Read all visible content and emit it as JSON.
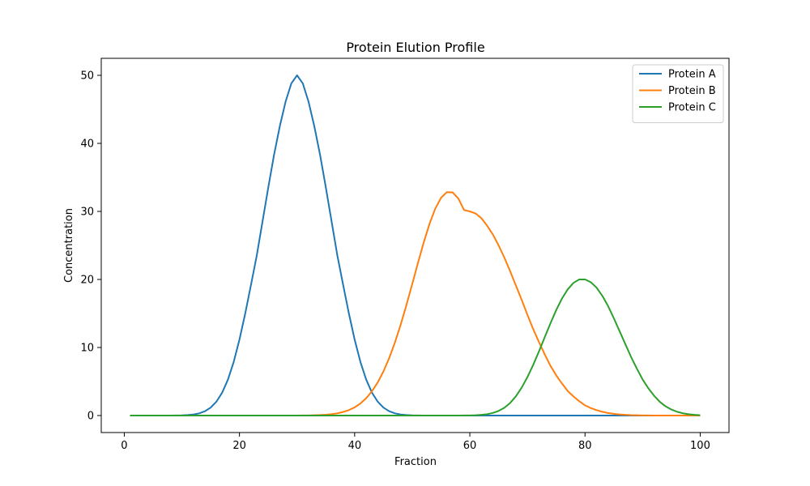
{
  "chart_data": {
    "type": "line",
    "title": "Protein Elution Profile",
    "xlabel": "Fraction",
    "ylabel": "Concentration",
    "xlim": [
      -4,
      105
    ],
    "ylim": [
      -2.5,
      52.5
    ],
    "xticks": [
      0,
      20,
      40,
      60,
      80,
      100
    ],
    "yticks": [
      0,
      10,
      20,
      30,
      40,
      50
    ],
    "x_range": [
      1,
      100
    ],
    "legend": "top-right",
    "grid": false,
    "series": [
      {
        "name": "Protein A",
        "color": "#1f77b4",
        "x": [
          1,
          2,
          3,
          4,
          5,
          6,
          7,
          8,
          9,
          10,
          11,
          12,
          13,
          14,
          15,
          16,
          17,
          18,
          19,
          20,
          21,
          22,
          23,
          24,
          25,
          26,
          27,
          28,
          29,
          30,
          31,
          32,
          33,
          34,
          35,
          36,
          37,
          38,
          39,
          40,
          41,
          42,
          43,
          44,
          45,
          46,
          47,
          48,
          49,
          50,
          51,
          52,
          53,
          54,
          55,
          56,
          57,
          58,
          59,
          60,
          61,
          62,
          63,
          64,
          65,
          66,
          67,
          68,
          69,
          70,
          71,
          72,
          73,
          74,
          75,
          76,
          77,
          78,
          79,
          80,
          81,
          82,
          83,
          84,
          85,
          86,
          87,
          88,
          89,
          90,
          91,
          92,
          93,
          94,
          95,
          96,
          97,
          98,
          99,
          100
        ],
        "y": [
          0,
          0,
          0,
          0,
          0,
          0,
          0,
          0,
          0.01,
          0.03,
          0.07,
          0.15,
          0.32,
          0.63,
          1.17,
          2.04,
          3.37,
          5.29,
          7.88,
          11.16,
          15.0,
          19.2,
          23.5,
          28.5,
          33.5,
          38.3,
          42.5,
          46.1,
          48.8,
          50.0,
          48.8,
          46.1,
          42.5,
          38.3,
          33.5,
          28.5,
          23.5,
          19.2,
          15.0,
          11.16,
          7.88,
          5.29,
          3.37,
          2.04,
          1.17,
          0.63,
          0.32,
          0.15,
          0.07,
          0.03,
          0.01,
          0,
          0,
          0,
          0,
          0,
          0,
          0,
          0,
          0,
          0,
          0,
          0,
          0,
          0,
          0,
          0,
          0,
          0,
          0,
          0,
          0,
          0,
          0,
          0,
          0,
          0,
          0,
          0,
          0,
          0,
          0,
          0,
          0,
          0,
          0,
          0,
          0,
          0,
          0,
          0,
          0,
          0,
          0,
          0,
          0,
          0,
          0,
          0,
          0
        ]
      },
      {
        "name": "Protein B",
        "color": "#ff7f0e",
        "x": [
          1,
          2,
          3,
          4,
          5,
          6,
          7,
          8,
          9,
          10,
          11,
          12,
          13,
          14,
          15,
          16,
          17,
          18,
          19,
          20,
          21,
          22,
          23,
          24,
          25,
          26,
          27,
          28,
          29,
          30,
          31,
          32,
          33,
          34,
          35,
          36,
          37,
          38,
          39,
          40,
          41,
          42,
          43,
          44,
          45,
          46,
          47,
          48,
          49,
          50,
          51,
          52,
          53,
          54,
          55,
          56,
          57,
          58,
          59,
          60,
          61,
          62,
          63,
          64,
          65,
          66,
          67,
          68,
          69,
          70,
          71,
          72,
          73,
          74,
          75,
          76,
          77,
          78,
          79,
          80,
          81,
          82,
          83,
          84,
          85,
          86,
          87,
          88,
          89,
          90,
          91,
          92,
          93,
          94,
          95,
          96,
          97,
          98,
          99,
          100
        ],
        "y": [
          0,
          0,
          0,
          0,
          0,
          0,
          0,
          0,
          0,
          0,
          0,
          0,
          0,
          0,
          0,
          0,
          0,
          0,
          0,
          0,
          0,
          0,
          0,
          0,
          0,
          0,
          0,
          0,
          0,
          0,
          0.01,
          0.02,
          0.04,
          0.07,
          0.12,
          0.2,
          0.33,
          0.52,
          0.8,
          1.2,
          1.77,
          2.54,
          3.56,
          4.86,
          6.49,
          8.45,
          10.75,
          13.37,
          16.27,
          19.33,
          22.46,
          25.47,
          28.18,
          30.41,
          32.0,
          32.83,
          32.8,
          31.9,
          30.2,
          30.0,
          29.7,
          29.0,
          27.9,
          26.6,
          25.0,
          23.2,
          21.2,
          19.1,
          17.0,
          14.8,
          12.7,
          10.8,
          9.0,
          7.3,
          5.9,
          4.7,
          3.6,
          2.8,
          2.1,
          1.5,
          1.1,
          0.8,
          0.55,
          0.37,
          0.25,
          0.16,
          0.1,
          0.06,
          0.04,
          0.02,
          0.01,
          0,
          0,
          0,
          0,
          0,
          0,
          0,
          0,
          0
        ]
      },
      {
        "name": "Protein C",
        "color": "#2ca02c",
        "x": [
          1,
          2,
          3,
          4,
          5,
          6,
          7,
          8,
          9,
          10,
          11,
          12,
          13,
          14,
          15,
          16,
          17,
          18,
          19,
          20,
          21,
          22,
          23,
          24,
          25,
          26,
          27,
          28,
          29,
          30,
          31,
          32,
          33,
          34,
          35,
          36,
          37,
          38,
          39,
          40,
          41,
          42,
          43,
          44,
          45,
          46,
          47,
          48,
          49,
          50,
          51,
          52,
          53,
          54,
          55,
          56,
          57,
          58,
          59,
          60,
          61,
          62,
          63,
          64,
          65,
          66,
          67,
          68,
          69,
          70,
          71,
          72,
          73,
          74,
          75,
          76,
          77,
          78,
          79,
          80,
          81,
          82,
          83,
          84,
          85,
          86,
          87,
          88,
          89,
          90,
          91,
          92,
          93,
          94,
          95,
          96,
          97,
          98,
          99,
          100
        ],
        "y": [
          0,
          0,
          0,
          0,
          0,
          0,
          0,
          0,
          0,
          0,
          0,
          0,
          0,
          0,
          0,
          0,
          0,
          0,
          0,
          0,
          0,
          0,
          0,
          0,
          0,
          0,
          0,
          0,
          0,
          0,
          0,
          0,
          0,
          0,
          0,
          0,
          0,
          0,
          0,
          0,
          0,
          0,
          0,
          0,
          0,
          0,
          0,
          0,
          0,
          0,
          0,
          0,
          0,
          0,
          0,
          0,
          0,
          0,
          0.01,
          0.02,
          0.05,
          0.1,
          0.2,
          0.38,
          0.68,
          1.15,
          1.85,
          2.83,
          4.1,
          5.65,
          7.45,
          9.42,
          11.5,
          13.55,
          15.5,
          17.2,
          18.55,
          19.5,
          20.0,
          20.0,
          19.6,
          18.8,
          17.6,
          16.1,
          14.3,
          12.4,
          10.5,
          8.6,
          6.9,
          5.3,
          4.0,
          2.9,
          2.0,
          1.35,
          0.88,
          0.55,
          0.33,
          0.19,
          0.1,
          0.05
        ]
      }
    ]
  }
}
